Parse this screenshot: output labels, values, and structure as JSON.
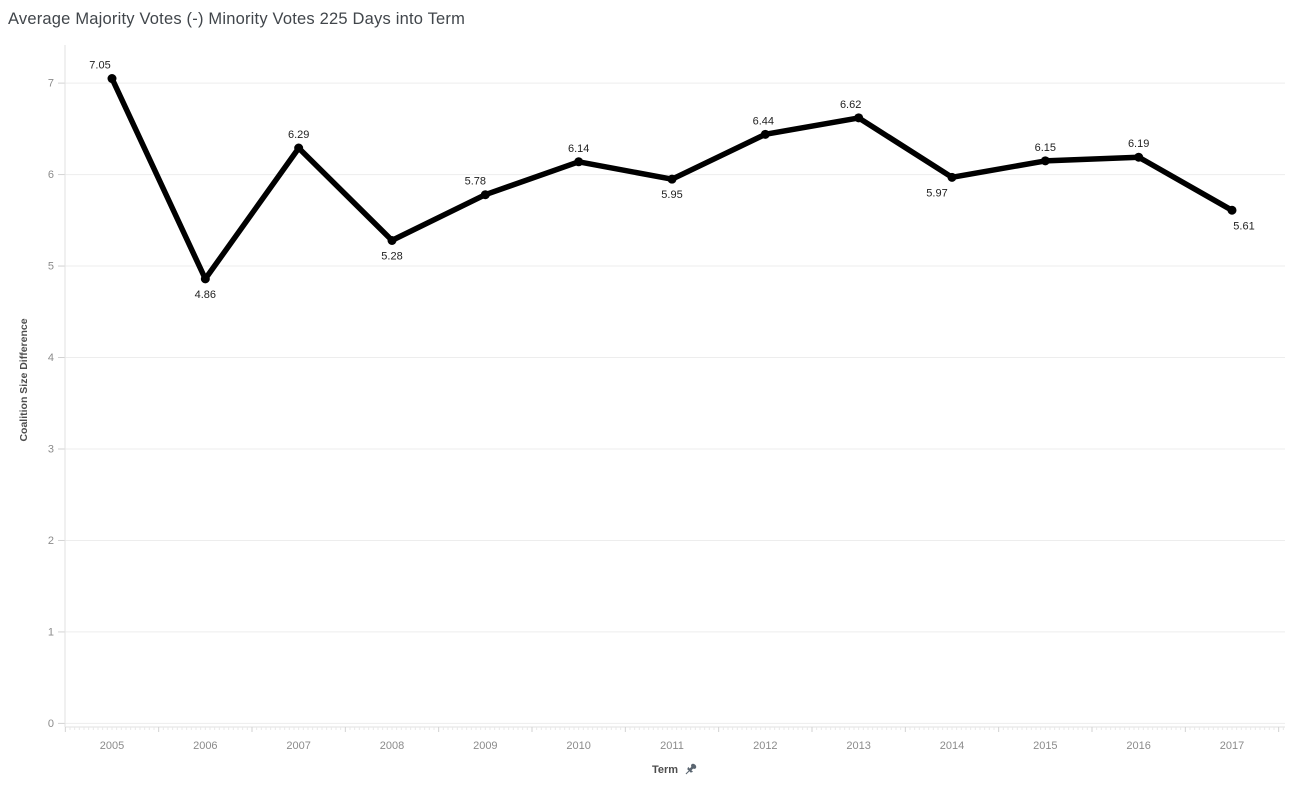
{
  "page": {
    "title": "Average Majority Votes (-) Minority Votes 225 Days into Term"
  },
  "axes": {
    "y_title": "Coalition Size Difference",
    "x_title": "Term"
  },
  "chart_data": {
    "type": "line",
    "title": "Average Majority Votes (-) Minority Votes 225 Days into Term",
    "xlabel": "Term",
    "ylabel": "Coalition Size Difference",
    "x": [
      2005,
      2006,
      2007,
      2008,
      2009,
      2010,
      2011,
      2012,
      2013,
      2014,
      2015,
      2016,
      2017
    ],
    "values": [
      7.05,
      4.86,
      6.29,
      5.28,
      5.78,
      6.14,
      5.95,
      6.44,
      6.62,
      5.97,
      6.15,
      6.19,
      5.61
    ],
    "data_labels": [
      "7.05",
      "4.86",
      "6.29",
      "5.28",
      "5.78",
      "6.14",
      "5.95",
      "6.44",
      "6.62",
      "5.97",
      "6.15",
      "6.19",
      "5.61"
    ],
    "ylim": [
      0,
      7.42
    ],
    "yticks": [
      0,
      1,
      2,
      3,
      4,
      5,
      6,
      7
    ],
    "ytick_labels": [
      "0",
      "1",
      "2",
      "3",
      "4",
      "5",
      "6",
      "7"
    ],
    "grid": true,
    "legend": "none",
    "line_color": "#000000",
    "label_layout": {
      "position": [
        "above",
        "below",
        "above",
        "below",
        "above",
        "above",
        "below",
        "above",
        "above",
        "below",
        "above",
        "above",
        "below"
      ],
      "dx": [
        -12,
        0,
        0,
        0,
        -10,
        0,
        0,
        -2,
        -8,
        -15,
        0,
        0,
        12
      ]
    }
  },
  "icons": {
    "x_axis_pin": "pin-icon"
  },
  "colors": {
    "title_text": "#41464b",
    "tick_text": "#8b8b8b",
    "axis_title_text": "#4d4d4d",
    "data_label_text": "#1f1f1f",
    "gridline": "#ededed",
    "axis_line": "#e2e2e2",
    "boundary_tick": "#d2d2d2",
    "minor_tick": "#e8e8e8",
    "line": "#000000",
    "pin": "#5a6570"
  }
}
